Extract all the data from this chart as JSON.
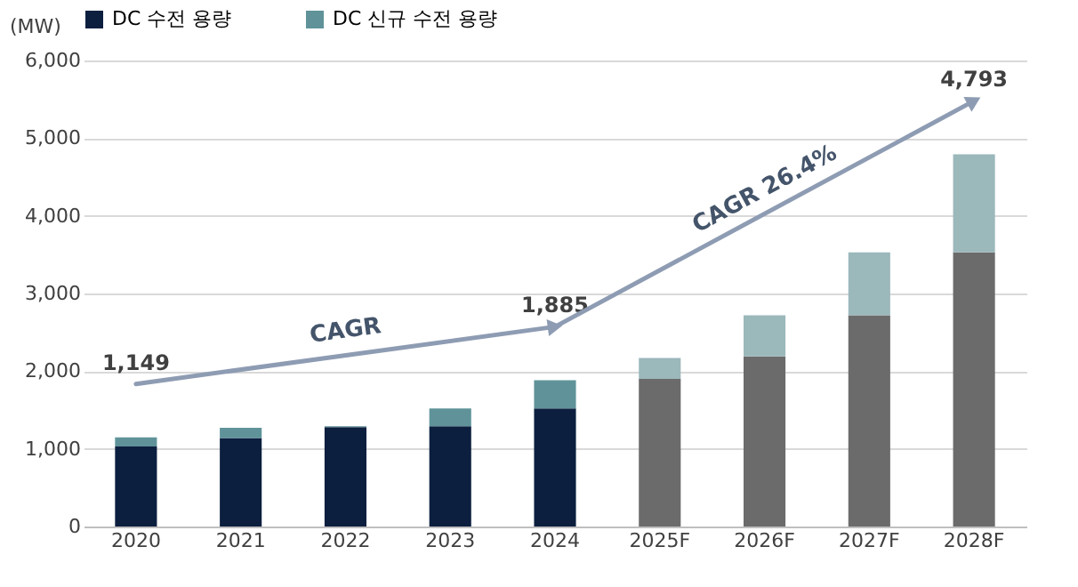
{
  "chart_data": {
    "type": "bar",
    "stacked": true,
    "categories": [
      "2020",
      "2021",
      "2022",
      "2023",
      "2024",
      "2025F",
      "2026F",
      "2027F",
      "2028F"
    ],
    "series": [
      {
        "name": "DC 수전 용량",
        "color": "#0c1f3f",
        "colors": [
          "#0c1f3f",
          "#0c1f3f",
          "#0c1f3f",
          "#0c1f3f",
          "#0c1f3f",
          "#6b6b6b",
          "#6b6b6b",
          "#6b6b6b",
          "#6b6b6b"
        ],
        "values": [
          1030,
          1140,
          1280,
          1290,
          1520,
          1900,
          2190,
          2720,
          3530
        ]
      },
      {
        "name": "DC 신규 수전 용량",
        "color": "#5f9399",
        "colors": [
          "#5f9399",
          "#5f9399",
          "#5f9399",
          "#5f9399",
          "#5f9399",
          "#9bb8bb",
          "#9bb8bb",
          "#9bb8bb",
          "#9bb8bb"
        ],
        "values": [
          119,
          130,
          10,
          230,
          365,
          270,
          530,
          810,
          1263
        ]
      }
    ],
    "totals": [
      "1,149",
      null,
      null,
      null,
      "1,885",
      null,
      null,
      null,
      "4,793"
    ],
    "annotations": [
      "CAGR",
      "CAGR 26.4%"
    ],
    "ylabel": "(MW)",
    "ylim": [
      0,
      6000
    ],
    "yticks": [
      0,
      {
        "value": 1000,
        "label": "1,000"
      },
      {
        "value": 2000,
        "label": "2,000"
      },
      {
        "value": 3000,
        "label": "3,000"
      },
      {
        "value": 4000,
        "label": "4,000"
      },
      {
        "value": 5000,
        "label": "5,000"
      },
      {
        "value": 6000,
        "label": "6,000"
      }
    ],
    "grid": "y",
    "legend": "top"
  }
}
